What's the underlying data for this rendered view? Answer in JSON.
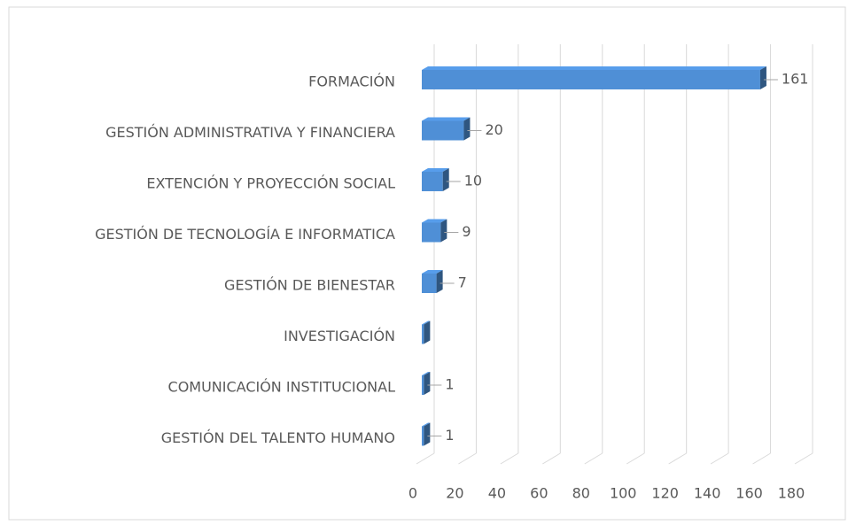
{
  "chart_data": {
    "type": "bar3d_horizontal",
    "categories": [
      "FORMACIÓN",
      "GESTIÓN ADMINISTRATIVA Y FINANCIERA",
      "EXTENCIÓN Y PROYECCIÓN SOCIAL",
      "GESTIÓN DE TECNOLOGÍA E INFORMATICA",
      "GESTIÓN DE BIENESTAR",
      "INVESTIGACIÓN",
      "COMUNICACIÓN INSTITUCIONAL",
      "GESTIÓN DEL TALENTO HUMANO"
    ],
    "values": [
      161,
      20,
      10,
      9,
      7,
      1,
      1,
      1
    ],
    "value_labels": [
      "161",
      "20",
      "10",
      "9",
      "7",
      null,
      "1",
      "1"
    ],
    "color": "#4f8fd6",
    "xlim": [
      0,
      180
    ],
    "xticks": [
      0,
      20,
      40,
      60,
      80,
      100,
      120,
      140,
      160,
      180
    ],
    "grid": true
  }
}
